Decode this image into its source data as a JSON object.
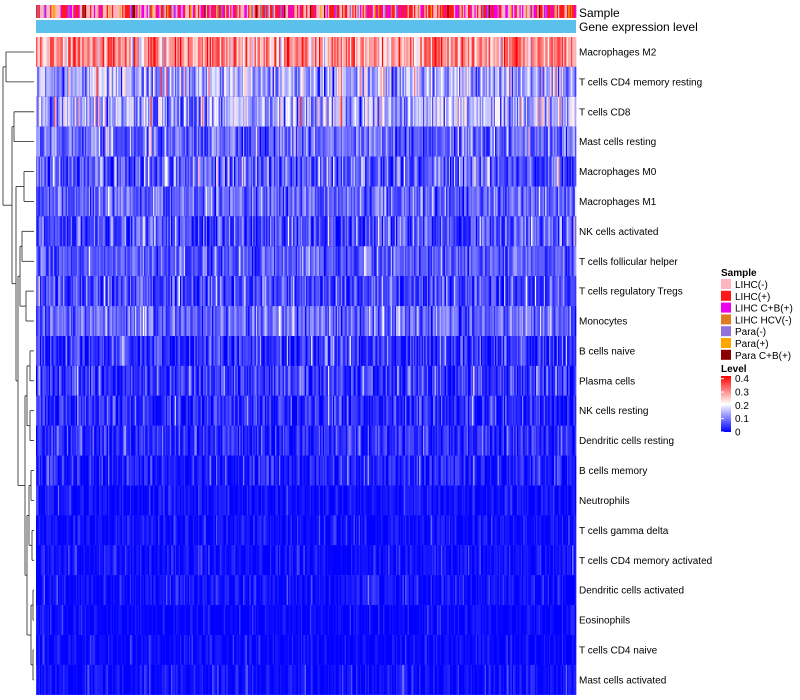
{
  "chart_data": {
    "type": "heatmap",
    "annotations": {
      "sample_label": "Sample",
      "gene_label": "Gene expression level"
    },
    "rows": [
      {
        "label": "Macrophages M2",
        "mean": 0.3,
        "sd": 0.06
      },
      {
        "label": "T cells CD4 memory resting",
        "mean": 0.14,
        "sd": 0.06
      },
      {
        "label": "T cells CD8",
        "mean": 0.14,
        "sd": 0.06
      },
      {
        "label": "Mast cells resting",
        "mean": 0.08,
        "sd": 0.045
      },
      {
        "label": "Macrophages M0",
        "mean": 0.07,
        "sd": 0.06
      },
      {
        "label": "Macrophages M1",
        "mean": 0.08,
        "sd": 0.04
      },
      {
        "label": "NK cells activated",
        "mean": 0.06,
        "sd": 0.045
      },
      {
        "label": "T cells follicular helper",
        "mean": 0.07,
        "sd": 0.035
      },
      {
        "label": "T cells regulatory  Tregs",
        "mean": 0.06,
        "sd": 0.04
      },
      {
        "label": "Monocytes",
        "mean": 0.08,
        "sd": 0.04
      },
      {
        "label": "B cells naive",
        "mean": 0.04,
        "sd": 0.04
      },
      {
        "label": "Plasma cells",
        "mean": 0.04,
        "sd": 0.04
      },
      {
        "label": "NK cells resting",
        "mean": 0.03,
        "sd": 0.035
      },
      {
        "label": "Dendritic cells resting",
        "mean": 0.03,
        "sd": 0.03
      },
      {
        "label": "B cells memory",
        "mean": 0.025,
        "sd": 0.03
      },
      {
        "label": "Neutrophils",
        "mean": 0.01,
        "sd": 0.02
      },
      {
        "label": "T cells gamma delta",
        "mean": 0.01,
        "sd": 0.02
      },
      {
        "label": "T cells CD4 memory activated",
        "mean": 0.01,
        "sd": 0.02
      },
      {
        "label": "Dendritic cells activated",
        "mean": 0.01,
        "sd": 0.02
      },
      {
        "label": "Eosinophils",
        "mean": 0.005,
        "sd": 0.015
      },
      {
        "label": "T cells CD4 naive",
        "mean": 0.005,
        "sd": 0.015
      },
      {
        "label": "Mast cells activated",
        "mean": 0.01,
        "sd": 0.02
      }
    ],
    "sample_groups": [
      {
        "name": "LIHC(-)",
        "color": "#ffb6c1"
      },
      {
        "name": "LIHC(+)",
        "color": "#ff1a1a"
      },
      {
        "name": "LIHC C+B(+)",
        "color": "#ee00ee"
      },
      {
        "name": "LIHC HCV(-)",
        "color": "#e07b22"
      },
      {
        "name": "Para(-)",
        "color": "#9370db"
      },
      {
        "name": "Para(+)",
        "color": "#ffa500"
      },
      {
        "name": "Para C+B(+)",
        "color": "#8b0000"
      }
    ],
    "gene_expression_color": "#5bc0eb",
    "level_legend": {
      "title": "Level",
      "ticks": [
        0.4,
        0.3,
        0.2,
        0.1,
        0
      ],
      "tick_labels": [
        "0.4",
        "0.3",
        "0.2",
        "0.1",
        "0"
      ],
      "min": 0,
      "max": 0.42,
      "colors": [
        "#0000ff",
        "#ffffff",
        "#ff0000"
      ]
    },
    "legend_titles": {
      "sample": "Sample",
      "level": "Level"
    },
    "n_samples": 420
  }
}
